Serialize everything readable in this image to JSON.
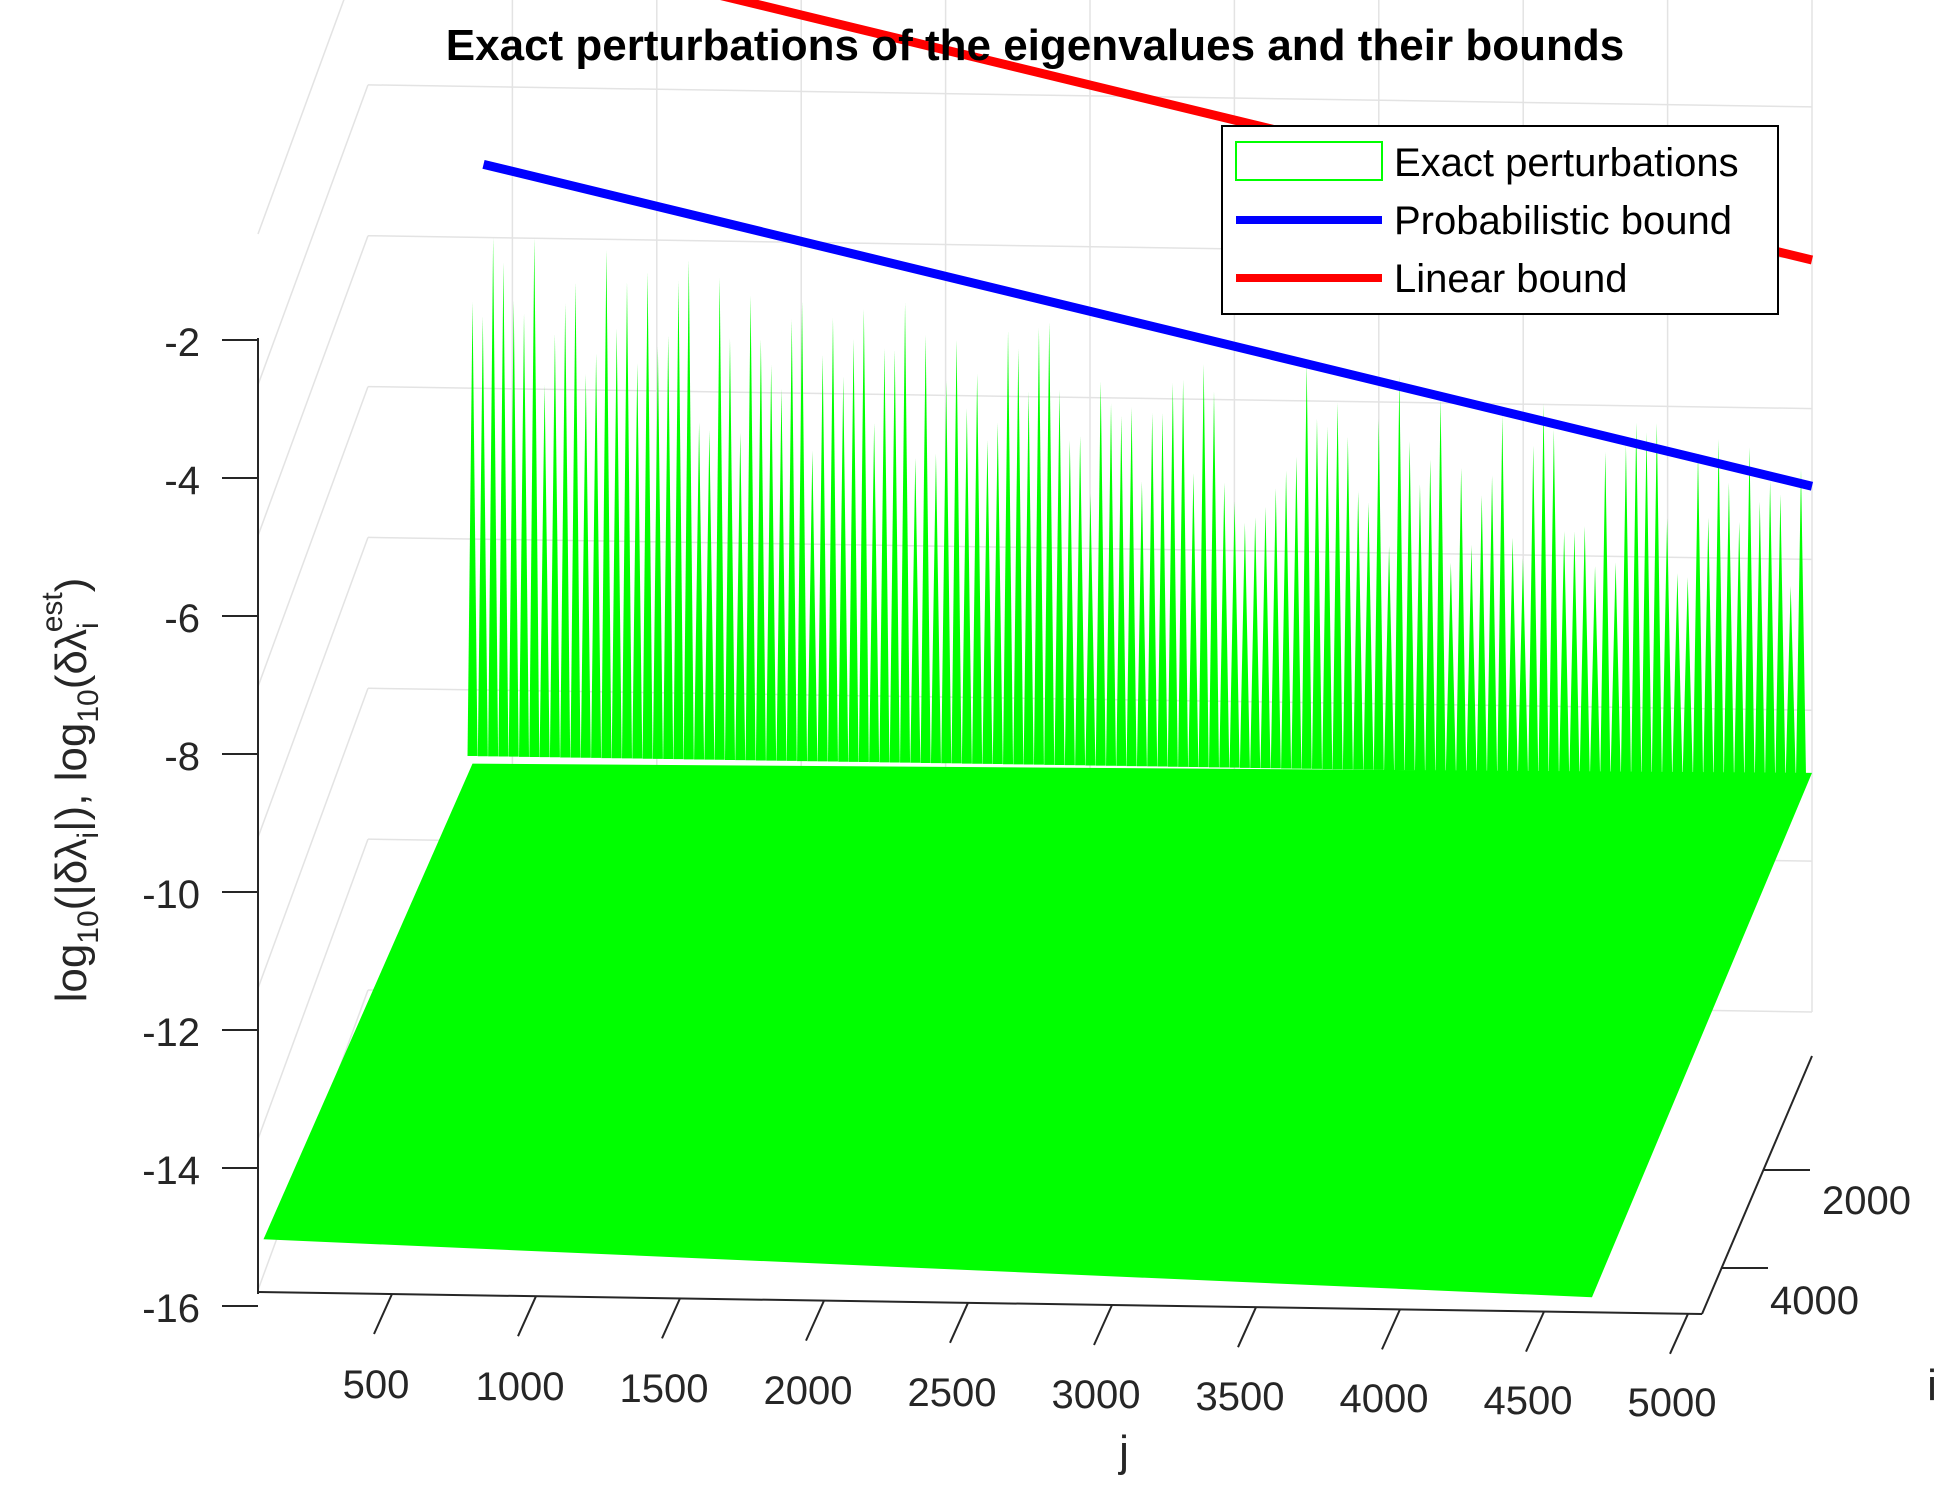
{
  "chart_data": {
    "type": "surface3d",
    "title": "Exact perturbations of the eigenvalues and their bounds",
    "xlabel": "j",
    "ylabel": "i",
    "zlabel": "log10(|δλi|), log10(δλi est)",
    "xlim": [
      0,
      5000
    ],
    "ylim": [
      0,
      5000
    ],
    "zlim": [
      -16,
      -2
    ],
    "x_ticks": [
      "500",
      "1000",
      "1500",
      "2000",
      "2500",
      "3000",
      "3500",
      "4000",
      "4500",
      "5000"
    ],
    "y_ticks": [
      "2000",
      "4000"
    ],
    "z_ticks": [
      "-2",
      "-4",
      "-6",
      "-8",
      "-10",
      "-12",
      "-14",
      "-16"
    ],
    "grid": true,
    "legend_position": "top-right",
    "series": [
      {
        "name": "Exact perturbations",
        "color": "#00ff00",
        "style": "surface",
        "floor_value": -15.5,
        "peaks_j": [
          400,
          5000
        ],
        "peaks_logvalue_range": [
          -12,
          -4.8
        ]
      },
      {
        "name": "Probabilistic bound",
        "color": "#0000ff",
        "style": "line",
        "x": [
          400,
          5000
        ],
        "y": [
          -4.5,
          -8.5
        ]
      },
      {
        "name": "Linear bound",
        "color": "#ff0000",
        "style": "line",
        "x": [
          400,
          5000
        ],
        "y": [
          -1.5,
          -5.5
        ]
      }
    ]
  }
}
